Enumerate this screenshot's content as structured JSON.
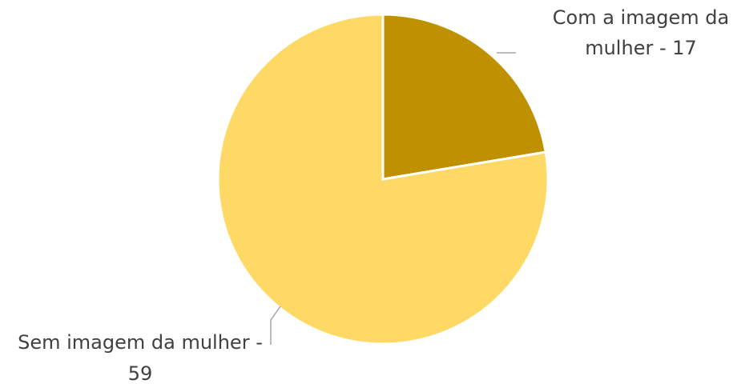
{
  "chart_data": {
    "type": "pie",
    "title": "",
    "start_angle_deg": 0,
    "direction": "clockwise",
    "slices": [
      {
        "label_lines": [
          "Com a imagem da",
          "mulher - 17"
        ],
        "category": "Com a imagem da mulher",
        "value": 17,
        "color": "#bf9000"
      },
      {
        "label_lines": [
          "Sem imagem da mulher -",
          "59"
        ],
        "category": "Sem imagem da mulher",
        "value": 59,
        "color": "#ffd966"
      }
    ],
    "legend": "none"
  }
}
